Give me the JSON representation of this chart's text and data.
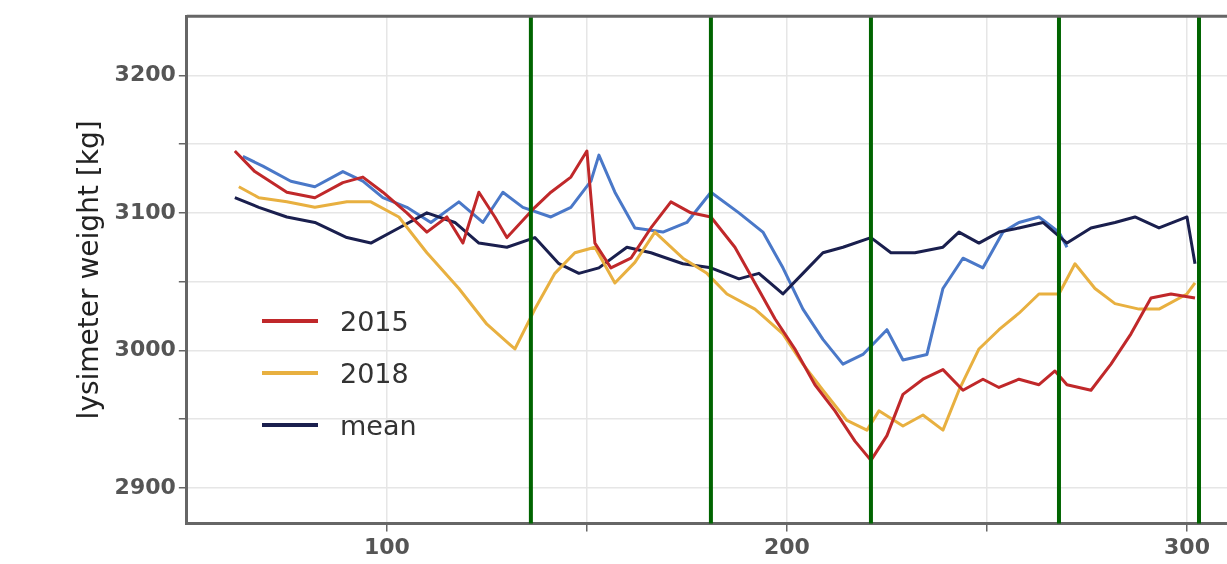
{
  "chart_data": {
    "type": "line",
    "ylabel": "lysimeter weight [kg]",
    "xlim": [
      50,
      310
    ],
    "xticks": [
      100,
      {
        "value": 150,
        "label": null
      },
      200,
      {
        "value": 250,
        "label": null
      },
      300
    ],
    "ylim": [
      2874,
      3243
    ],
    "yticks": [
      2900,
      {
        "value": 2950,
        "label": null
      },
      3000,
      {
        "value": 3050,
        "label": null
      },
      3100,
      {
        "value": 3150,
        "label": null
      },
      3200
    ],
    "grid": true,
    "legend": "bottom left",
    "marker": "none",
    "line_style": "solid",
    "series": [
      {
        "name": "2015",
        "color": "#c0282a",
        "x": [
          62,
          67,
          75,
          82,
          89,
          94,
          99,
          105,
          110,
          115,
          119,
          123,
          127,
          130,
          137,
          141,
          146,
          150,
          152,
          156,
          161,
          166,
          171,
          176,
          181,
          187,
          192,
          197,
          202,
          207,
          212,
          217,
          221,
          225,
          229,
          234,
          239,
          244,
          249,
          253,
          258,
          263,
          267,
          270,
          276,
          281,
          286,
          291,
          296,
          302
        ],
        "values": [
          3145,
          3130,
          3115,
          3111,
          3122,
          3126,
          3115,
          3100,
          3086,
          3097,
          3078,
          3115,
          3097,
          3082,
          3104,
          3115,
          3126,
          3145,
          3078,
          3060,
          3067,
          3089,
          3108,
          3100,
          3097,
          3075,
          3049,
          3023,
          3001,
          2975,
          2956,
          2934,
          2920,
          2938,
          2968,
          2979,
          2986,
          2971,
          2979,
          2973,
          2979,
          2975,
          2985,
          2975,
          2971,
          2990,
          3012,
          3038,
          3041,
          3038
        ]
      },
      {
        "name": "2018",
        "color": "#e8b040",
        "x": [
          63,
          68,
          75,
          82,
          90,
          96,
          103,
          110,
          118,
          125,
          132,
          137,
          142,
          147,
          152,
          157,
          162,
          167,
          174,
          180,
          185,
          192,
          199,
          204,
          209,
          215,
          220,
          223,
          229,
          234,
          239,
          243,
          248,
          253,
          258,
          263,
          268,
          272,
          277,
          282,
          288,
          293,
          300,
          302
        ],
        "values": [
          3119,
          3111,
          3108,
          3104,
          3108,
          3108,
          3097,
          3071,
          3045,
          3019,
          3001,
          3030,
          3056,
          3071,
          3075,
          3049,
          3064,
          3086,
          3067,
          3056,
          3041,
          3030,
          3012,
          2990,
          2971,
          2949,
          2942,
          2956,
          2945,
          2953,
          2942,
          2971,
          3001,
          3015,
          3027,
          3041,
          3041,
          3063,
          3045,
          3034,
          3030,
          3030,
          3041,
          3049
        ]
      },
      {
        "name": "mean",
        "color": "#1a1f4e",
        "x": [
          62,
          68,
          75,
          82,
          90,
          96,
          103,
          110,
          117,
          123,
          130,
          137,
          143,
          148,
          153,
          160,
          166,
          174,
          181,
          188,
          193,
          199,
          204,
          209,
          214,
          221,
          226,
          232,
          239,
          243,
          248,
          253,
          258,
          264,
          270,
          276,
          282,
          287,
          293,
          300,
          302
        ],
        "values": [
          3111,
          3104,
          3097,
          3093,
          3082,
          3078,
          3089,
          3100,
          3093,
          3078,
          3075,
          3082,
          3063,
          3056,
          3060,
          3075,
          3071,
          3063,
          3060,
          3052,
          3056,
          3041,
          3056,
          3071,
          3075,
          3082,
          3071,
          3071,
          3075,
          3086,
          3078,
          3086,
          3089,
          3093,
          3078,
          3089,
          3093,
          3097,
          3089,
          3097,
          3063
        ]
      },
      {
        "color": "#4a78c8",
        "x": [
          64,
          69,
          76,
          82,
          89,
          94,
          99,
          105,
          111,
          118,
          124,
          129,
          134,
          141,
          146,
          151,
          153,
          157,
          162,
          169,
          175,
          181,
          188,
          194,
          199,
          204,
          209,
          214,
          219,
          225,
          229,
          235,
          239,
          244,
          249,
          254,
          258,
          263,
          268,
          270
        ],
        "values": [
          3141,
          3134,
          3123,
          3119,
          3130,
          3123,
          3111,
          3104,
          3093,
          3108,
          3093,
          3115,
          3104,
          3097,
          3104,
          3123,
          3142,
          3115,
          3089,
          3086,
          3093,
          3115,
          3100,
          3086,
          3060,
          3030,
          3008,
          2990,
          2997,
          3015,
          2993,
          2997,
          3045,
          3067,
          3060,
          3086,
          3093,
          3097,
          3086,
          3075
        ]
      }
    ],
    "ref_lines": [
      {
        "axis": "x",
        "value": 136,
        "color": "#006400"
      },
      {
        "axis": "x",
        "value": 181,
        "color": "#006400"
      },
      {
        "axis": "x",
        "value": 221,
        "color": "#006400"
      },
      {
        "axis": "x",
        "value": 268,
        "color": "#006400"
      },
      {
        "axis": "x",
        "value": 303,
        "color": "#006400"
      }
    ]
  }
}
